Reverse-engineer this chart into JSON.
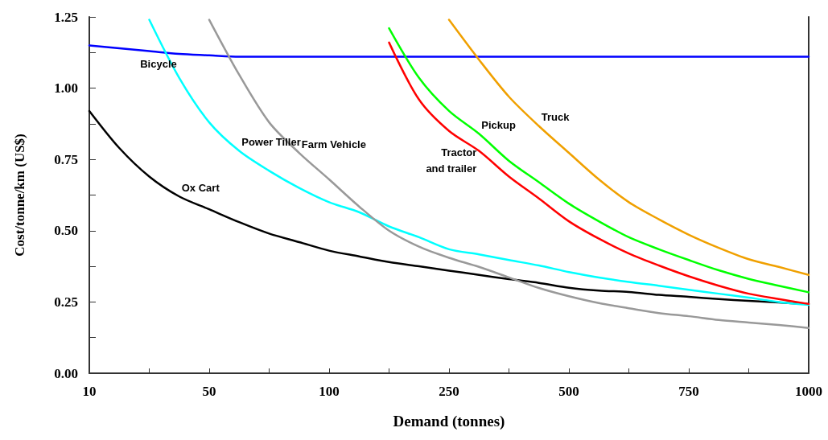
{
  "chart_data": {
    "type": "line",
    "xlabel": "Demand (tonnes)",
    "ylabel": "Cost/tonne/km (US$)",
    "categories": [
      "10",
      null,
      null,
      null,
      "50",
      null,
      null,
      null,
      "100",
      null,
      null,
      null,
      "250",
      null,
      null,
      null,
      "500",
      null,
      null,
      null,
      "750",
      null,
      null,
      null,
      "1000"
    ],
    "ylim": [
      0,
      1.25
    ],
    "yticks": [
      {
        "value": 0,
        "label": "0.00"
      },
      {
        "value": 0.125,
        "label": null
      },
      {
        "value": 0.25,
        "label": "0.25"
      },
      {
        "value": 0.375,
        "label": null
      },
      {
        "value": 0.5,
        "label": "0.50"
      },
      {
        "value": 0.625,
        "label": null
      },
      {
        "value": 0.75,
        "label": "0.75"
      },
      {
        "value": 0.875,
        "label": null
      },
      {
        "value": 1,
        "label": "1.00"
      },
      {
        "value": 1.125,
        "label": null
      },
      {
        "value": 1.25,
        "label": "1.25"
      }
    ],
    "series": [
      {
        "name": "Bicycle",
        "color": "#0000ff",
        "values": [
          1.15,
          1.14,
          1.13,
          1.12,
          1.115,
          1.11,
          1.11,
          1.11,
          1.11,
          1.11,
          1.11,
          1.11,
          1.11,
          1.11,
          1.11,
          1.11,
          1.11,
          1.11,
          1.11,
          1.11,
          1.11,
          1.11,
          1.11,
          1.11,
          1.11
        ]
      },
      {
        "name": "Ox Cart",
        "color": "#000000",
        "values": [
          0.92,
          0.79,
          0.69,
          0.62,
          0.575,
          0.53,
          0.49,
          0.46,
          0.43,
          0.41,
          0.39,
          0.375,
          0.36,
          0.345,
          0.33,
          0.317,
          0.3,
          0.29,
          0.285,
          0.275,
          0.268,
          0.26,
          0.254,
          0.248,
          0.243
        ]
      },
      {
        "name": "Power Tiller",
        "color": "#00ffff",
        "values": [
          null,
          null,
          1.24,
          1.036,
          0.88,
          0.78,
          0.71,
          0.65,
          0.6,
          0.565,
          0.515,
          0.477,
          0.435,
          0.417,
          0.397,
          0.378,
          0.355,
          0.336,
          0.32,
          0.307,
          0.293,
          0.279,
          0.265,
          0.25,
          0.24
        ]
      },
      {
        "name": "Farm Vehicle",
        "color": "#999999",
        "values": [
          null,
          null,
          null,
          null,
          1.24,
          1.047,
          0.88,
          0.773,
          0.68,
          0.585,
          0.5,
          0.444,
          0.405,
          0.373,
          0.336,
          0.299,
          0.27,
          0.246,
          0.228,
          0.211,
          0.2,
          0.187,
          0.178,
          0.169,
          0.159
        ]
      },
      {
        "name": "Tractor\nand trailer",
        "color": "#ff0000",
        "values": [
          null,
          null,
          null,
          null,
          null,
          null,
          null,
          null,
          null,
          null,
          1.16,
          0.96,
          0.85,
          0.78,
          0.69,
          0.613,
          0.533,
          0.472,
          0.42,
          0.378,
          0.34,
          0.307,
          0.279,
          0.26,
          0.243
        ]
      },
      {
        "name": "Pickup",
        "color": "#00ff00",
        "values": [
          null,
          null,
          null,
          null,
          null,
          null,
          null,
          null,
          null,
          null,
          1.21,
          1.036,
          0.92,
          0.84,
          0.745,
          0.67,
          0.595,
          0.533,
          0.477,
          0.435,
          0.397,
          0.361,
          0.331,
          0.307,
          0.284
        ]
      },
      {
        "name": "Truck",
        "color": "#f0a000",
        "values": [
          null,
          null,
          null,
          null,
          null,
          null,
          null,
          null,
          null,
          null,
          null,
          null,
          1.24,
          1.1,
          0.97,
          0.867,
          0.773,
          0.68,
          0.6,
          0.54,
          0.486,
          0.44,
          0.4,
          0.373,
          0.345
        ]
      }
    ]
  }
}
